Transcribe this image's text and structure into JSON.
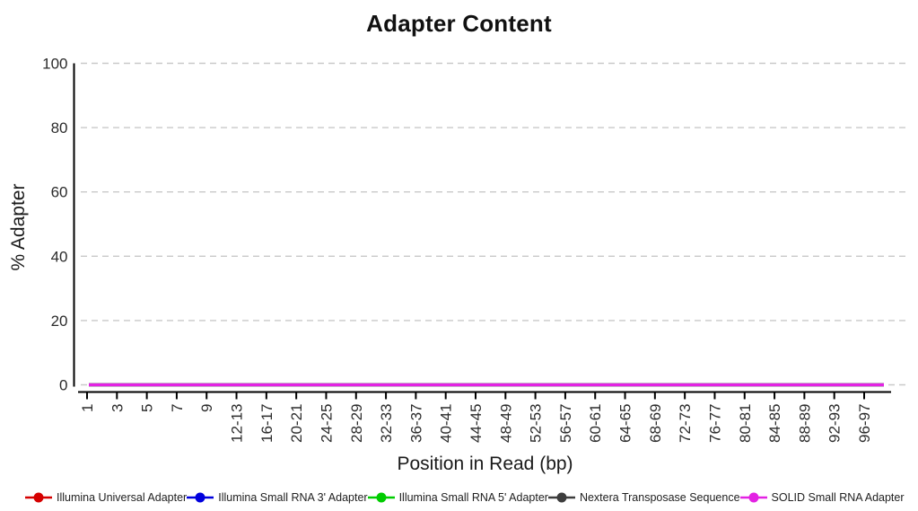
{
  "chart_data": {
    "type": "line",
    "title": "Adapter Content",
    "xlabel": "Position in Read (bp)",
    "ylabel": "% Adapter",
    "ylim": [
      0,
      100
    ],
    "yticks": [
      0,
      20,
      40,
      60,
      80,
      100
    ],
    "grid": "horizontal-dashed",
    "gridline_color": "#c9c9c9",
    "axis_color": "#000000",
    "tick_label_color": "#2b2b2b",
    "legend_position": "bottom",
    "categories": [
      "1",
      "3",
      "5",
      "7",
      "9",
      "12-13",
      "16-17",
      "20-21",
      "24-25",
      "28-29",
      "32-33",
      "36-37",
      "40-41",
      "44-45",
      "48-49",
      "52-53",
      "56-57",
      "60-61",
      "64-65",
      "68-69",
      "72-73",
      "76-77",
      "80-81",
      "84-85",
      "88-89",
      "92-93",
      "96-97"
    ],
    "series": [
      {
        "name": "Illumina Universal Adapter",
        "color": "#d50000",
        "values": [
          0,
          0,
          0,
          0,
          0,
          0,
          0,
          0,
          0,
          0,
          0,
          0,
          0,
          0,
          0,
          0,
          0,
          0,
          0,
          0,
          0,
          0,
          0,
          0,
          0,
          0,
          0
        ]
      },
      {
        "name": "Illumina Small RNA 3' Adapter",
        "color": "#0000dd",
        "values": [
          0,
          0,
          0,
          0,
          0,
          0,
          0,
          0,
          0,
          0,
          0,
          0,
          0,
          0,
          0,
          0,
          0,
          0,
          0,
          0,
          0,
          0,
          0,
          0,
          0,
          0,
          0
        ]
      },
      {
        "name": "Illumina Small RNA 5' Adapter",
        "color": "#00cc00",
        "values": [
          0,
          0,
          0,
          0,
          0,
          0,
          0,
          0,
          0,
          0,
          0,
          0,
          0,
          0,
          0,
          0,
          0,
          0,
          0,
          0,
          0,
          0,
          0,
          0,
          0,
          0,
          0
        ]
      },
      {
        "name": "Nextera Transposase Sequence",
        "color": "#3d3d3d",
        "values": [
          0,
          0,
          0,
          0,
          0,
          0,
          0,
          0,
          0,
          0,
          0,
          0,
          0,
          0,
          0,
          0,
          0,
          0,
          0,
          0,
          0,
          0,
          0,
          0,
          0,
          0,
          0
        ]
      },
      {
        "name": "SOLID Small RNA Adapter",
        "color": "#e322e3",
        "values": [
          0,
          0,
          0,
          0,
          0,
          0,
          0,
          0,
          0,
          0,
          0,
          0,
          0,
          0,
          0,
          0,
          0,
          0,
          0,
          0,
          0,
          0,
          0,
          0,
          0,
          0,
          0
        ]
      }
    ]
  }
}
